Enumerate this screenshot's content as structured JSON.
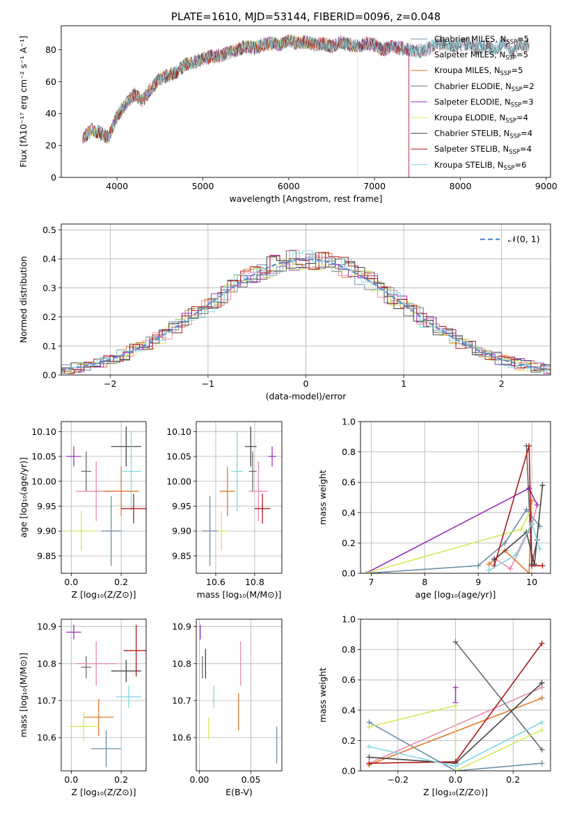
{
  "colors": [
    "#6b8fa8",
    "#e88ab0",
    "#e0782a",
    "#6a6a6a",
    "#9b30c0",
    "#d4e85c",
    "#444444",
    "#b01818",
    "#7fd8e0"
  ],
  "chart_data": [
    {
      "id": "spectrum",
      "type": "line",
      "title": "PLATE=1610, MJD=53144, FIBERID=0096, z=0.048",
      "xlabel": "wavelength [Angstrom, rest frame]",
      "ylabel": "Flux [fλ10⁻¹⁷ erg cm⁻² s⁻¹ A⁻¹]",
      "xlim": [
        3350,
        9050
      ],
      "ylim": [
        0,
        95
      ],
      "xticks": [
        4000,
        5000,
        6000,
        7000,
        8000,
        9000
      ],
      "yticks": [
        0,
        20,
        40,
        60,
        80
      ],
      "grid": false,
      "legend_position": "top-right",
      "legend": [
        "Chabrier MILES, N_SSP=5",
        "Salpeter MILES, N_SSP=5",
        "Kroupa MILES, N_SSP=5",
        "Chabrier ELODIE, N_SSP=2",
        "Salpeter ELODIE, N_SSP=3",
        "Kroupa ELODIE, N_SSP=4",
        "Chabrier STELIB, N_SSP=4",
        "Salpeter STELIB, N_SSP=4",
        "Kroupa STELIB, N_SSP=6"
      ],
      "x": [
        3600,
        3700,
        3800,
        3900,
        4000,
        4100,
        4200,
        4300,
        4400,
        4500,
        4600,
        4700,
        4800,
        4900,
        5000,
        5100,
        5200,
        5300,
        5400,
        5500,
        5600,
        5700,
        5800,
        5900,
        6000,
        6100,
        6200,
        6300,
        6400,
        6500,
        6600,
        6700,
        6800,
        6900,
        7000,
        7100,
        7200,
        7300,
        7400,
        7500,
        7600,
        7700,
        7800,
        7900,
        8000,
        8100,
        8200,
        8300,
        8400,
        8500,
        8600,
        8700,
        8800
      ],
      "y": [
        24,
        30,
        28,
        25,
        38,
        46,
        52,
        48,
        56,
        62,
        64,
        66,
        71,
        72,
        74,
        76,
        76,
        78,
        80,
        82,
        81,
        83,
        84,
        83,
        86,
        84,
        85,
        83,
        84,
        82,
        85,
        83,
        82,
        84,
        83,
        80,
        82,
        81,
        80,
        79,
        80,
        83,
        84,
        82,
        83,
        84,
        81,
        82,
        80,
        85,
        79,
        84,
        82
      ]
    },
    {
      "id": "residuals",
      "type": "area",
      "xlabel": "(data-model)/error",
      "ylabel": "Normed distribution",
      "xlim": [
        -2.5,
        2.5
      ],
      "ylim": [
        0,
        0.52
      ],
      "xticks": [
        -2,
        -1,
        0,
        1,
        2
      ],
      "xticklabels": [
        "−2",
        "−1",
        "0",
        "1",
        "2"
      ],
      "yticks": [
        0.0,
        0.1,
        0.2,
        0.3,
        0.4,
        0.5
      ],
      "yticklabels": [
        "0.0",
        "0.1",
        "0.2",
        "0.3",
        "0.4",
        "0.5"
      ],
      "grid": true,
      "legend_position": "top-right",
      "legend": [
        "𝒩(0, 1)"
      ],
      "reference_curve": "normal(0,1)"
    },
    {
      "id": "age-vs-Z",
      "type": "scatter",
      "xlabel": "Z [log₁₀(Z/Z⊙)]",
      "ylabel": "age  [log₁₀(age/yr)]",
      "xlim": [
        -0.04,
        0.3
      ],
      "ylim": [
        9.815,
        10.12
      ],
      "xticks": [
        0.0,
        0.2
      ],
      "xticklabels": [
        "0.0",
        "0.2"
      ],
      "yticks": [
        9.85,
        9.9,
        9.95,
        10.0,
        10.05,
        10.1
      ],
      "yticklabels": [
        "9.85",
        "9.90",
        "9.95",
        "10.00",
        "10.05",
        "10.10"
      ],
      "points": [
        {
          "x": 0.01,
          "y": 10.05,
          "xe": 0.03,
          "ye": 0.02,
          "c": 4
        },
        {
          "x": 0.06,
          "y": 10.02,
          "xe": 0.02,
          "ye": 0.04,
          "c": 3
        },
        {
          "x": 0.22,
          "y": 10.07,
          "xe": 0.06,
          "ye": 0.04,
          "c": 6
        },
        {
          "x": 0.1,
          "y": 9.98,
          "xe": 0.08,
          "ye": 0.06,
          "c": 1
        },
        {
          "x": 0.2,
          "y": 9.98,
          "xe": 0.07,
          "ye": 0.05,
          "c": 2
        },
        {
          "x": 0.24,
          "y": 10.02,
          "xe": 0.04,
          "ye": 0.08,
          "c": 8
        },
        {
          "x": 0.25,
          "y": 9.945,
          "xe": 0.05,
          "ye": 0.03,
          "c": 7
        },
        {
          "x": 0.04,
          "y": 9.9,
          "xe": 0.06,
          "ye": 0.04,
          "c": 5
        },
        {
          "x": 0.16,
          "y": 9.9,
          "xe": 0.04,
          "ye": 0.07,
          "c": 0
        }
      ]
    },
    {
      "id": "age-vs-mass",
      "type": "scatter",
      "xlabel": "mass [log₁₀(M/M⊙)]",
      "xlim": [
        10.5,
        10.94
      ],
      "ylim": [
        9.815,
        10.12
      ],
      "xticks": [
        10.6,
        10.8
      ],
      "xticklabels": [
        "10.6",
        "10.8"
      ],
      "yticks": [
        9.85,
        9.9,
        9.95,
        10.0,
        10.05,
        10.1
      ],
      "yticklabels": [
        "9.85",
        "9.90",
        "9.95",
        "10.00",
        "10.05",
        "10.10"
      ],
      "points": [
        {
          "x": 10.89,
          "y": 10.05,
          "xe": 0.02,
          "ye": 0.02,
          "c": 4
        },
        {
          "x": 10.79,
          "y": 10.02,
          "xe": 0.02,
          "ye": 0.04,
          "c": 3
        },
        {
          "x": 10.78,
          "y": 10.07,
          "xe": 0.03,
          "ye": 0.04,
          "c": 6
        },
        {
          "x": 10.82,
          "y": 9.98,
          "xe": 0.05,
          "ye": 0.06,
          "c": 1
        },
        {
          "x": 10.66,
          "y": 9.98,
          "xe": 0.04,
          "ye": 0.05,
          "c": 2
        },
        {
          "x": 10.71,
          "y": 10.02,
          "xe": 0.03,
          "ye": 0.08,
          "c": 8
        },
        {
          "x": 10.84,
          "y": 9.945,
          "xe": 0.04,
          "ye": 0.03,
          "c": 7
        },
        {
          "x": 10.63,
          "y": 9.9,
          "xe": 0.03,
          "ye": 0.04,
          "c": 5
        },
        {
          "x": 10.57,
          "y": 9.9,
          "xe": 0.04,
          "ye": 0.07,
          "c": 0
        }
      ]
    },
    {
      "id": "weight-vs-age",
      "type": "line",
      "xlabel": "age  [log₁₀(age/yr)]",
      "ylabel": "mass weight",
      "xlim": [
        6.8,
        10.35
      ],
      "ylim": [
        0,
        1.0
      ],
      "xticks": [
        7,
        8,
        9,
        10
      ],
      "xticklabels": [
        "7",
        "8",
        "9",
        "10"
      ],
      "yticks": [
        0.0,
        0.2,
        0.4,
        0.6,
        0.8,
        1.0
      ],
      "yticklabels": [
        "0.0",
        "0.2",
        "0.4",
        "0.6",
        "0.8",
        "1.0"
      ],
      "series": [
        {
          "c": 0,
          "x": [
            6.9,
            9.0,
            9.5,
            9.9,
            10.15
          ],
          "y": [
            0.0,
            0.05,
            0.2,
            0.42,
            0.31
          ]
        },
        {
          "c": 1,
          "x": [
            9.3,
            9.6,
            10.0,
            10.1
          ],
          "y": [
            0.1,
            0.03,
            0.32,
            0.45
          ]
        },
        {
          "c": 2,
          "x": [
            9.2,
            9.5,
            9.95,
            10.0
          ],
          "y": [
            0.06,
            0.15,
            0.0,
            0.48
          ]
        },
        {
          "c": 3,
          "x": [
            9.9,
            10.0,
            10.1
          ],
          "y": [
            0.84,
            0.06,
            0.22
          ]
        },
        {
          "c": 4,
          "x": [
            6.9,
            9.95,
            10.1
          ],
          "y": [
            0.0,
            0.56,
            0.45
          ]
        },
        {
          "c": 5,
          "x": [
            6.9,
            9.8,
            10.0
          ],
          "y": [
            0.0,
            0.29,
            0.43
          ]
        },
        {
          "c": 6,
          "x": [
            9.3,
            9.9,
            10.05,
            10.2
          ],
          "y": [
            0.09,
            0.27,
            0.06,
            0.58
          ]
        },
        {
          "c": 7,
          "x": [
            9.3,
            9.95,
            10.0,
            10.2
          ],
          "y": [
            0.05,
            0.84,
            0.05,
            0.05
          ]
        },
        {
          "c": 8,
          "x": [
            9.2,
            9.7,
            10.0,
            10.15
          ],
          "y": [
            0.02,
            0.12,
            0.33,
            0.16
          ]
        }
      ]
    },
    {
      "id": "mass-vs-Z",
      "type": "scatter",
      "xlabel": "Z [log₁₀(Z/Z⊙)]",
      "ylabel": "mass [log₁₀(M/M⊙)]",
      "xlim": [
        -0.04,
        0.3
      ],
      "ylim": [
        10.51,
        10.92
      ],
      "xticks": [
        0.0,
        0.2
      ],
      "xticklabels": [
        "0.0",
        "0.2"
      ],
      "yticks": [
        10.6,
        10.7,
        10.8,
        10.9
      ],
      "yticklabels": [
        "10.6",
        "10.7",
        "10.8",
        "10.9"
      ],
      "points": [
        {
          "x": 0.01,
          "y": 10.885,
          "xe": 0.03,
          "ye": 0.02,
          "c": 4
        },
        {
          "x": 0.06,
          "y": 10.79,
          "xe": 0.02,
          "ye": 0.03,
          "c": 3
        },
        {
          "x": 0.22,
          "y": 10.78,
          "xe": 0.06,
          "ye": 0.03,
          "c": 6
        },
        {
          "x": 0.1,
          "y": 10.8,
          "xe": 0.08,
          "ye": 0.06,
          "c": 1
        },
        {
          "x": 0.26,
          "y": 10.835,
          "xe": 0.05,
          "ye": 0.07,
          "c": 7
        },
        {
          "x": 0.11,
          "y": 10.655,
          "xe": 0.06,
          "ye": 0.05,
          "c": 2
        },
        {
          "x": 0.23,
          "y": 10.71,
          "xe": 0.05,
          "ye": 0.03,
          "c": 8
        },
        {
          "x": 0.05,
          "y": 10.63,
          "xe": 0.06,
          "ye": 0.04,
          "c": 5
        },
        {
          "x": 0.14,
          "y": 10.57,
          "xe": 0.06,
          "ye": 0.05,
          "c": 0
        }
      ]
    },
    {
      "id": "mass-vs-EBV",
      "type": "scatter",
      "xlabel": "E(B-V)",
      "xlim": [
        -0.003,
        0.08
      ],
      "ylim": [
        10.51,
        10.92
      ],
      "xticks": [
        0.0,
        0.05
      ],
      "xticklabels": [
        "0.00",
        "0.05"
      ],
      "yticks": [
        10.6,
        10.7,
        10.8,
        10.9
      ],
      "yticklabels": [
        "10.6",
        "10.7",
        "10.8",
        "10.9"
      ],
      "points": [
        {
          "x": 0.001,
          "y": 10.885,
          "xe": 0,
          "ye": 0.02,
          "c": 4
        },
        {
          "x": 0.003,
          "y": 10.79,
          "xe": 0,
          "ye": 0.03,
          "c": 3
        },
        {
          "x": 0.006,
          "y": 10.8,
          "xe": 0,
          "ye": 0.04,
          "c": 6
        },
        {
          "x": 0.04,
          "y": 10.8,
          "xe": 0,
          "ye": 0.06,
          "c": 1
        },
        {
          "x": 0.038,
          "y": 10.67,
          "xe": 0,
          "ye": 0.05,
          "c": 2
        },
        {
          "x": 0.014,
          "y": 10.71,
          "xe": 0,
          "ye": 0.03,
          "c": 8
        },
        {
          "x": 0.009,
          "y": 10.625,
          "xe": 0,
          "ye": 0.03,
          "c": 5
        },
        {
          "x": 0.075,
          "y": 10.58,
          "xe": 0,
          "ye": 0.05,
          "c": 0
        }
      ]
    },
    {
      "id": "weight-vs-Z",
      "type": "line",
      "xlabel": "Z [log₁₀(Z/Z⊙)]",
      "ylabel": "mass weight",
      "xlim": [
        -0.33,
        0.33
      ],
      "ylim": [
        0,
        1.0
      ],
      "xticks": [
        -0.2,
        0.0,
        0.2
      ],
      "xticklabels": [
        "−0.2",
        "0.0",
        "0.2"
      ],
      "yticks": [
        0.0,
        0.2,
        0.4,
        0.6,
        0.8,
        1.0
      ],
      "yticklabels": [
        "0.0",
        "0.2",
        "0.4",
        "0.6",
        "0.8",
        "1.0"
      ],
      "series": [
        {
          "c": 0,
          "x": [
            -0.3,
            0.0,
            0.3
          ],
          "y": [
            0.32,
            0.0,
            0.05
          ]
        },
        {
          "c": 1,
          "x": [
            -0.3,
            0.3
          ],
          "y": [
            0.05,
            0.55
          ]
        },
        {
          "c": 2,
          "x": [
            -0.3,
            0.3
          ],
          "y": [
            0.04,
            0.48
          ]
        },
        {
          "c": 3,
          "x": [
            0.0,
            0.3
          ],
          "y": [
            0.85,
            0.14
          ]
        },
        {
          "c": 4,
          "x": [
            0.0,
            0.0
          ],
          "y": [
            0.45,
            0.55
          ]
        },
        {
          "c": 5,
          "x": [
            -0.3,
            0.0,
            0.0,
            0.3
          ],
          "y": [
            0.29,
            0.43,
            0.0,
            0.27
          ]
        },
        {
          "c": 6,
          "x": [
            -0.3,
            0.0,
            0.3
          ],
          "y": [
            0.09,
            0.05,
            0.58
          ]
        },
        {
          "c": 7,
          "x": [
            -0.3,
            0.0,
            0.3
          ],
          "y": [
            0.05,
            0.06,
            0.84
          ]
        },
        {
          "c": 8,
          "x": [
            -0.3,
            0.0,
            0.3
          ],
          "y": [
            0.16,
            0.03,
            0.32
          ]
        }
      ]
    }
  ]
}
